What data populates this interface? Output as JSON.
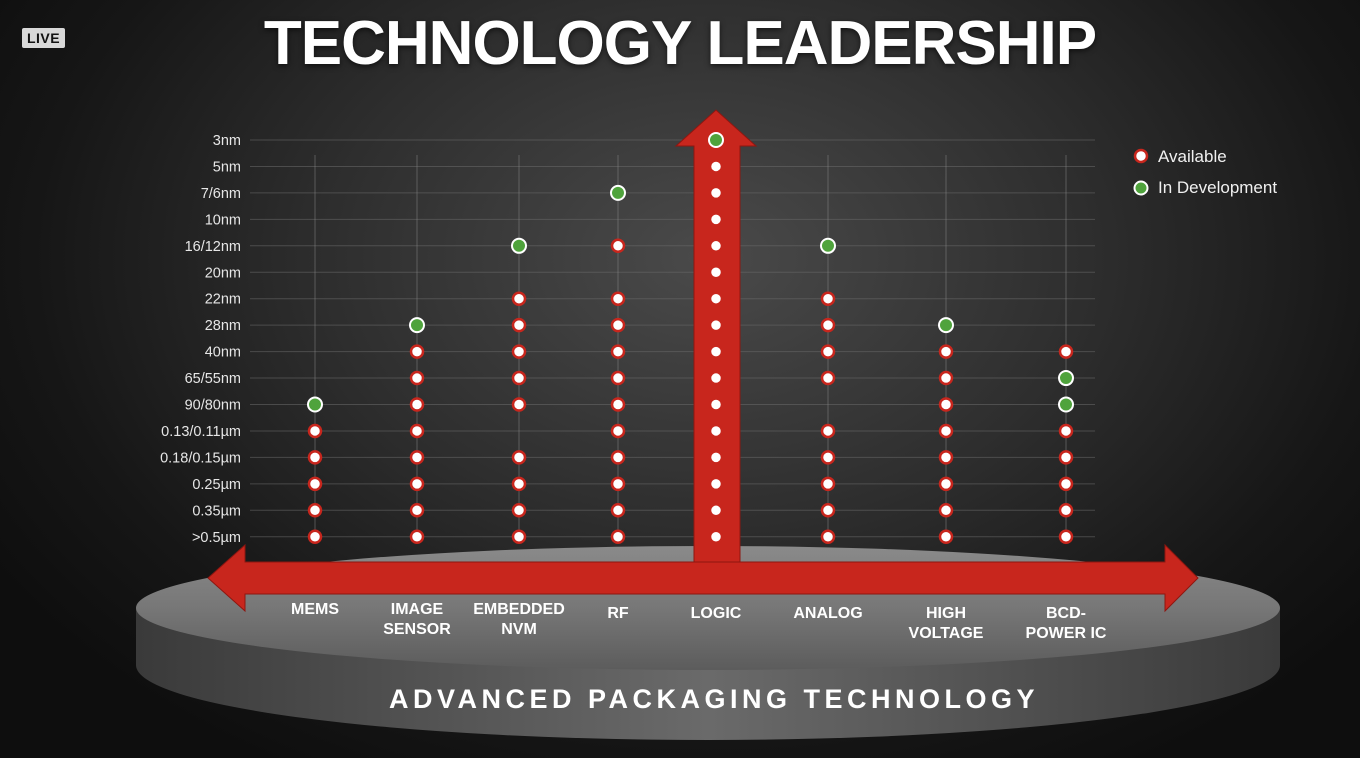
{
  "badge": "LIVE",
  "title": "TECHNOLOGY LEADERSHIP",
  "platform_label": "ADVANCED PACKAGING TECHNOLOGY",
  "colors": {
    "arrow": "#c8261d",
    "available_border": "#c8261d",
    "available_fill": "#ffffff",
    "in_development": "#4fa33c"
  },
  "chart_data": {
    "type": "scatter",
    "title": "TECHNOLOGY LEADERSHIP",
    "y_categories": [
      "3nm",
      "5nm",
      "7/6nm",
      "10nm",
      "16/12nm",
      "20nm",
      "22nm",
      "28nm",
      "40nm",
      "65/55nm",
      "90/80nm",
      "0.13/0.11µm",
      "0.18/0.15µm",
      "0.25µm",
      "0.35µm",
      ">0.5µm"
    ],
    "x_categories": [
      {
        "key": "mems",
        "lines": [
          "MEMS"
        ]
      },
      {
        "key": "image-sensor",
        "lines": [
          "IMAGE",
          "SENSOR"
        ]
      },
      {
        "key": "embedded-nvm",
        "lines": [
          "EMBEDDED",
          "NVM"
        ]
      },
      {
        "key": "rf",
        "lines": [
          "RF"
        ]
      },
      {
        "key": "logic",
        "lines": [
          "LOGIC"
        ]
      },
      {
        "key": "analog",
        "lines": [
          "ANALOG"
        ]
      },
      {
        "key": "high-voltage",
        "lines": [
          "HIGH",
          "VOLTAGE"
        ]
      },
      {
        "key": "bcd-power-ic",
        "lines": [
          "BCD-",
          "POWER IC"
        ]
      }
    ],
    "legend": [
      {
        "name": "Available",
        "status": "available"
      },
      {
        "name": "In Development",
        "status": "in_development"
      }
    ],
    "legend_position": "top-right",
    "series": [
      {
        "category": "mems",
        "points": [
          {
            "node": "90/80nm",
            "status": "in_development"
          },
          {
            "node": "0.13/0.11µm",
            "status": "available"
          },
          {
            "node": "0.18/0.15µm",
            "status": "available"
          },
          {
            "node": "0.25µm",
            "status": "available"
          },
          {
            "node": "0.35µm",
            "status": "available"
          },
          {
            "node": ">0.5µm",
            "status": "available"
          }
        ]
      },
      {
        "category": "image-sensor",
        "points": [
          {
            "node": "28nm",
            "status": "in_development"
          },
          {
            "node": "40nm",
            "status": "available"
          },
          {
            "node": "65/55nm",
            "status": "available"
          },
          {
            "node": "90/80nm",
            "status": "available"
          },
          {
            "node": "0.13/0.11µm",
            "status": "available"
          },
          {
            "node": "0.18/0.15µm",
            "status": "available"
          },
          {
            "node": "0.25µm",
            "status": "available"
          },
          {
            "node": "0.35µm",
            "status": "available"
          },
          {
            "node": ">0.5µm",
            "status": "available"
          }
        ]
      },
      {
        "category": "embedded-nvm",
        "points": [
          {
            "node": "16/12nm",
            "status": "in_development"
          },
          {
            "node": "22nm",
            "status": "available"
          },
          {
            "node": "28nm",
            "status": "available"
          },
          {
            "node": "40nm",
            "status": "available"
          },
          {
            "node": "65/55nm",
            "status": "available"
          },
          {
            "node": "90/80nm",
            "status": "available"
          },
          {
            "node": "0.18/0.15µm",
            "status": "available"
          },
          {
            "node": "0.25µm",
            "status": "available"
          },
          {
            "node": "0.35µm",
            "status": "available"
          },
          {
            "node": ">0.5µm",
            "status": "available"
          }
        ]
      },
      {
        "category": "rf",
        "points": [
          {
            "node": "7/6nm",
            "status": "in_development"
          },
          {
            "node": "16/12nm",
            "status": "available"
          },
          {
            "node": "22nm",
            "status": "available"
          },
          {
            "node": "28nm",
            "status": "available"
          },
          {
            "node": "40nm",
            "status": "available"
          },
          {
            "node": "65/55nm",
            "status": "available"
          },
          {
            "node": "90/80nm",
            "status": "available"
          },
          {
            "node": "0.13/0.11µm",
            "status": "available"
          },
          {
            "node": "0.18/0.15µm",
            "status": "available"
          },
          {
            "node": "0.25µm",
            "status": "available"
          },
          {
            "node": "0.35µm",
            "status": "available"
          },
          {
            "node": ">0.5µm",
            "status": "available"
          }
        ]
      },
      {
        "category": "logic",
        "points": [
          {
            "node": "3nm",
            "status": "in_development"
          },
          {
            "node": "5nm",
            "status": "available"
          },
          {
            "node": "7/6nm",
            "status": "available"
          },
          {
            "node": "10nm",
            "status": "available"
          },
          {
            "node": "16/12nm",
            "status": "available"
          },
          {
            "node": "20nm",
            "status": "available"
          },
          {
            "node": "22nm",
            "status": "available"
          },
          {
            "node": "28nm",
            "status": "available"
          },
          {
            "node": "40nm",
            "status": "available"
          },
          {
            "node": "65/55nm",
            "status": "available"
          },
          {
            "node": "90/80nm",
            "status": "available"
          },
          {
            "node": "0.13/0.11µm",
            "status": "available"
          },
          {
            "node": "0.18/0.15µm",
            "status": "available"
          },
          {
            "node": "0.25µm",
            "status": "available"
          },
          {
            "node": "0.35µm",
            "status": "available"
          },
          {
            "node": ">0.5µm",
            "status": "available"
          }
        ]
      },
      {
        "category": "analog",
        "points": [
          {
            "node": "16/12nm",
            "status": "in_development"
          },
          {
            "node": "22nm",
            "status": "available"
          },
          {
            "node": "28nm",
            "status": "available"
          },
          {
            "node": "40nm",
            "status": "available"
          },
          {
            "node": "65/55nm",
            "status": "available"
          },
          {
            "node": "0.13/0.11µm",
            "status": "available"
          },
          {
            "node": "0.18/0.15µm",
            "status": "available"
          },
          {
            "node": "0.25µm",
            "status": "available"
          },
          {
            "node": "0.35µm",
            "status": "available"
          },
          {
            "node": ">0.5µm",
            "status": "available"
          }
        ]
      },
      {
        "category": "high-voltage",
        "points": [
          {
            "node": "28nm",
            "status": "in_development"
          },
          {
            "node": "40nm",
            "status": "available"
          },
          {
            "node": "65/55nm",
            "status": "available"
          },
          {
            "node": "90/80nm",
            "status": "available"
          },
          {
            "node": "0.13/0.11µm",
            "status": "available"
          },
          {
            "node": "0.18/0.15µm",
            "status": "available"
          },
          {
            "node": "0.25µm",
            "status": "available"
          },
          {
            "node": "0.35µm",
            "status": "available"
          },
          {
            "node": ">0.5µm",
            "status": "available"
          }
        ]
      },
      {
        "category": "bcd-power-ic",
        "points": [
          {
            "node": "40nm",
            "status": "available"
          },
          {
            "node": "65/55nm",
            "status": "in_development"
          },
          {
            "node": "90/80nm",
            "status": "in_development"
          },
          {
            "node": "0.13/0.11µm",
            "status": "available"
          },
          {
            "node": "0.18/0.15µm",
            "status": "available"
          },
          {
            "node": "0.25µm",
            "status": "available"
          },
          {
            "node": "0.35µm",
            "status": "available"
          },
          {
            "node": ">0.5µm",
            "status": "available"
          }
        ]
      }
    ]
  }
}
